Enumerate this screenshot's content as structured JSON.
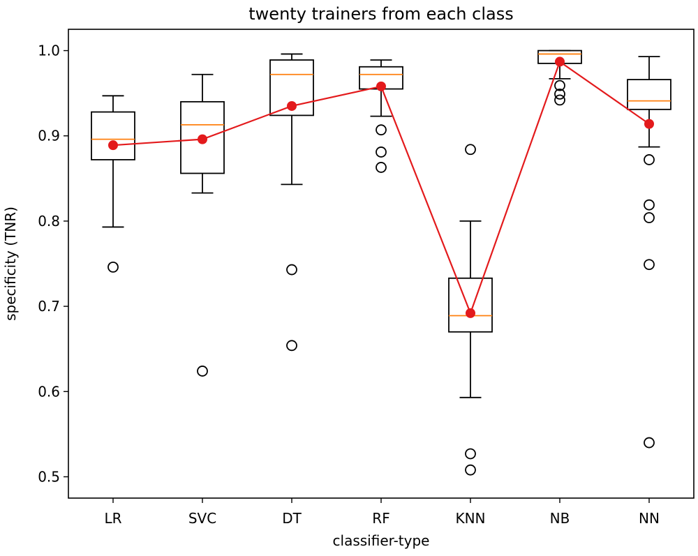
{
  "chart_data": {
    "type": "box",
    "title": "twenty trainers from each class",
    "xlabel": "classifier-type",
    "ylabel": "specificity (TNR)",
    "ylim": [
      0.475,
      1.025
    ],
    "yticks": [
      0.5,
      0.6,
      0.7,
      0.8,
      0.9,
      1.0
    ],
    "ytick_labels": [
      "0.5",
      "0.6",
      "0.7",
      "0.8",
      "0.9",
      "1.0"
    ],
    "categories": [
      "LR",
      "SVC",
      "DT",
      "RF",
      "KNN",
      "NB",
      "NN"
    ],
    "grid": false,
    "colors": {
      "box": "#000000",
      "median": "#ff7f0e",
      "mean_line": "#e31a1c",
      "outlier_edge": "#000000"
    },
    "boxes": [
      {
        "category": "LR",
        "whisker_low": 0.793,
        "q1": 0.872,
        "median": 0.896,
        "q3": 0.928,
        "whisker_high": 0.947,
        "outliers": [
          0.746
        ]
      },
      {
        "category": "SVC",
        "whisker_low": 0.833,
        "q1": 0.856,
        "median": 0.913,
        "q3": 0.94,
        "whisker_high": 0.972,
        "outliers": [
          0.624
        ]
      },
      {
        "category": "DT",
        "whisker_low": 0.843,
        "q1": 0.924,
        "median": 0.972,
        "q3": 0.989,
        "whisker_high": 0.996,
        "outliers": [
          0.743,
          0.654
        ]
      },
      {
        "category": "RF",
        "whisker_low": 0.923,
        "q1": 0.955,
        "median": 0.972,
        "q3": 0.981,
        "whisker_high": 0.989,
        "outliers": [
          0.907,
          0.881,
          0.863
        ]
      },
      {
        "category": "KNN",
        "whisker_low": 0.593,
        "q1": 0.67,
        "median": 0.689,
        "q3": 0.733,
        "whisker_high": 0.8,
        "outliers": [
          0.884,
          0.527,
          0.508
        ]
      },
      {
        "category": "NB",
        "whisker_low": 0.967,
        "q1": 0.985,
        "median": 0.996,
        "q3": 1.0,
        "whisker_high": 1.0,
        "outliers": [
          0.959,
          0.949,
          0.942
        ]
      },
      {
        "category": "NN",
        "whisker_low": 0.887,
        "q1": 0.931,
        "median": 0.941,
        "q3": 0.966,
        "whisker_high": 0.993,
        "outliers": [
          0.872,
          0.819,
          0.804,
          0.749,
          0.54
        ]
      }
    ],
    "series": [
      {
        "values": [
          0.889,
          0.896,
          0.935,
          0.958,
          0.692,
          0.987,
          0.914
        ]
      }
    ]
  }
}
